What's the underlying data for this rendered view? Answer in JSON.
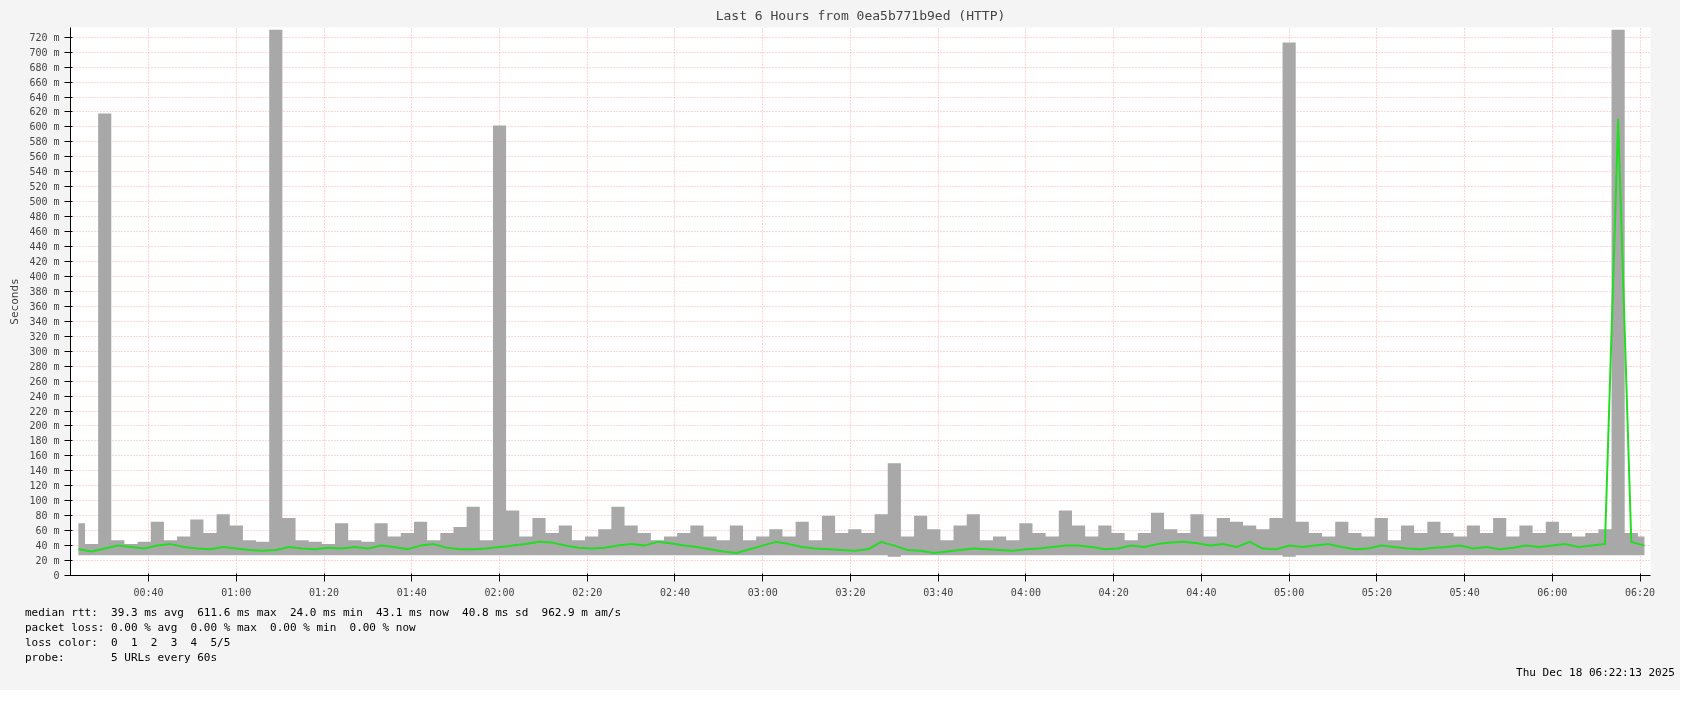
{
  "chart_data": {
    "type": "line",
    "title": "Last 6 Hours from 0ea5b771b9ed (HTTP)",
    "ylabel": "Seconds",
    "x": [
      0.4,
      0.45,
      0.5,
      0.55,
      0.6,
      0.65,
      0.7,
      0.75,
      0.8,
      0.85,
      0.9,
      0.95,
      1.0,
      1.05,
      1.1,
      1.15,
      1.2,
      1.25,
      1.3,
      1.35,
      1.4,
      1.45,
      1.5,
      1.55,
      1.6,
      1.65,
      1.7,
      1.75,
      1.8,
      1.85,
      1.9,
      1.95,
      2.0,
      2.05,
      2.1,
      2.15,
      2.2,
      2.25,
      2.3,
      2.35,
      2.4,
      2.45,
      2.5,
      2.55,
      2.6,
      2.65,
      2.7,
      2.75,
      2.8,
      2.85,
      2.9,
      2.95,
      3.0,
      3.05,
      3.1,
      3.15,
      3.2,
      3.25,
      3.3,
      3.35,
      3.4,
      3.45,
      3.5,
      3.55,
      3.6,
      3.65,
      3.7,
      3.75,
      3.8,
      3.85,
      3.9,
      3.95,
      4.0,
      4.05,
      4.1,
      4.15,
      4.2,
      4.25,
      4.3,
      4.35,
      4.4,
      4.45,
      4.5,
      4.55,
      4.6,
      4.65,
      4.7,
      4.75,
      4.8,
      4.85,
      4.9,
      4.95,
      5.0,
      5.05,
      5.1,
      5.15,
      5.2,
      5.25,
      5.3,
      5.35,
      5.4,
      5.45,
      5.5,
      5.55,
      5.6,
      5.65,
      5.7,
      5.75,
      5.8,
      5.85,
      5.9,
      5.95,
      6.0,
      6.05,
      6.1,
      6.15,
      6.2,
      6.25,
      6.3,
      6.35
    ],
    "series": [
      {
        "color": "#22dd22",
        "values": [
          35,
          32,
          36,
          40,
          38,
          36,
          40,
          42,
          38,
          36,
          35,
          38,
          36,
          34,
          33,
          34,
          38,
          36,
          35,
          37,
          36,
          38,
          36,
          40,
          38,
          35,
          40,
          42,
          37,
          35,
          35,
          36,
          38,
          40,
          42,
          45,
          44,
          40,
          37,
          36,
          37,
          40,
          42,
          40,
          45,
          43,
          40,
          38,
          35,
          32,
          30,
          35,
          40,
          45,
          42,
          38,
          36,
          35,
          34,
          33,
          35,
          45,
          40,
          34,
          33,
          30,
          32,
          34,
          36,
          35,
          34,
          33,
          35,
          36,
          38,
          40,
          40,
          38,
          35,
          36,
          40,
          38,
          42,
          44,
          45,
          43,
          40,
          42,
          38,
          45,
          36,
          35,
          40,
          38,
          40,
          42,
          38,
          35,
          36,
          40,
          38,
          36,
          35,
          37,
          38,
          40,
          36,
          38,
          35,
          37,
          40,
          38,
          40,
          42,
          38,
          40,
          42,
          610,
          45,
          40
        ],
        "lower": [
          27,
          27,
          27,
          27,
          27,
          27,
          27,
          27,
          27,
          27,
          27,
          27,
          27,
          27,
          27,
          27,
          27,
          27,
          27,
          27,
          27,
          27,
          27,
          27,
          27,
          27,
          27,
          27,
          27,
          27,
          27,
          27,
          27,
          27,
          27,
          27,
          27,
          27,
          27,
          27,
          27,
          27,
          27,
          27,
          27,
          27,
          27,
          27,
          27,
          27,
          27,
          27,
          27,
          27,
          27,
          27,
          27,
          27,
          27,
          27,
          27,
          27,
          25,
          27,
          27,
          27,
          27,
          27,
          27,
          27,
          27,
          27,
          27,
          27,
          27,
          27,
          27,
          27,
          27,
          27,
          27,
          27,
          27,
          27,
          27,
          27,
          27,
          27,
          27,
          27,
          27,
          27,
          25,
          27,
          27,
          27,
          27,
          27,
          27,
          27,
          27,
          27,
          27,
          27,
          27,
          27,
          27,
          27,
          27,
          27,
          27,
          27,
          27,
          27,
          27,
          27,
          27,
          27,
          27,
          27
        ],
        "upper": [
          70,
          42,
          618,
          47,
          42,
          45,
          72,
          47,
          52,
          75,
          57,
          82,
          67,
          47,
          45,
          730,
          77,
          47,
          45,
          42,
          70,
          47,
          45,
          70,
          52,
          57,
          72,
          47,
          57,
          65,
          92,
          47,
          602,
          87,
          52,
          77,
          57,
          67,
          47,
          52,
          62,
          92,
          67,
          57,
          47,
          52,
          57,
          67,
          52,
          47,
          67,
          47,
          52,
          62,
          52,
          72,
          47,
          80,
          57,
          62,
          57,
          82,
          150,
          52,
          80,
          62,
          47,
          67,
          82,
          47,
          52,
          47,
          70,
          57,
          52,
          87,
          67,
          52,
          67,
          57,
          47,
          57,
          84,
          62,
          57,
          82,
          52,
          77,
          72,
          67,
          62,
          77,
          713,
          72,
          57,
          52,
          72,
          57,
          52,
          77,
          47,
          67,
          57,
          72,
          57,
          52,
          67,
          57,
          77,
          52,
          67,
          57,
          72,
          57,
          52,
          57,
          62,
          730,
          57,
          52
        ]
      }
    ],
    "xlim": [
      0.37,
      6.373
    ],
    "xticks": [
      {
        "value": 0.6667,
        "label": "00:40"
      },
      {
        "value": 1.0,
        "label": "01:00"
      },
      {
        "value": 1.3333,
        "label": "01:20"
      },
      {
        "value": 1.6667,
        "label": "01:40"
      },
      {
        "value": 2.0,
        "label": "02:00"
      },
      {
        "value": 2.3333,
        "label": "02:20"
      },
      {
        "value": 2.6667,
        "label": "02:40"
      },
      {
        "value": 3.0,
        "label": "03:00"
      },
      {
        "value": 3.3333,
        "label": "03:20"
      },
      {
        "value": 3.6667,
        "label": "03:40"
      },
      {
        "value": 4.0,
        "label": "04:00"
      },
      {
        "value": 4.3333,
        "label": "04:20"
      },
      {
        "value": 4.6667,
        "label": "04:40"
      },
      {
        "value": 5.0,
        "label": "05:00"
      },
      {
        "value": 5.3333,
        "label": "05:20"
      },
      {
        "value": 5.6667,
        "label": "05:40"
      },
      {
        "value": 6.0,
        "label": "06:00"
      },
      {
        "value": 6.3333,
        "label": "06:20"
      }
    ],
    "ylim": [
      0,
      733
    ],
    "yticks": [
      0,
      {
        "value": 20,
        "label": "20 m"
      },
      {
        "value": 40,
        "label": "40 m"
      },
      {
        "value": 60,
        "label": "60 m"
      },
      {
        "value": 80,
        "label": "80 m"
      },
      {
        "value": 100,
        "label": "100 m"
      },
      {
        "value": 120,
        "label": "120 m"
      },
      {
        "value": 140,
        "label": "140 m"
      },
      {
        "value": 160,
        "label": "160 m"
      },
      {
        "value": 180,
        "label": "180 m"
      },
      {
        "value": 200,
        "label": "200 m"
      },
      {
        "value": 220,
        "label": "220 m"
      },
      {
        "value": 240,
        "label": "240 m"
      },
      {
        "value": 260,
        "label": "260 m"
      },
      {
        "value": 280,
        "label": "280 m"
      },
      {
        "value": 300,
        "label": "300 m"
      },
      {
        "value": 320,
        "label": "320 m"
      },
      {
        "value": 340,
        "label": "340 m"
      },
      {
        "value": 360,
        "label": "360 m"
      },
      {
        "value": 380,
        "label": "380 m"
      },
      {
        "value": 400,
        "label": "400 m"
      },
      {
        "value": 420,
        "label": "420 m"
      },
      {
        "value": 440,
        "label": "440 m"
      },
      {
        "value": 460,
        "label": "460 m"
      },
      {
        "value": 480,
        "label": "480 m"
      },
      {
        "value": 500,
        "label": "500 m"
      },
      {
        "value": 520,
        "label": "520 m"
      },
      {
        "value": 540,
        "label": "540 m"
      },
      {
        "value": 560,
        "label": "560 m"
      },
      {
        "value": 580,
        "label": "580 m"
      },
      {
        "value": 600,
        "label": "600 m"
      },
      {
        "value": 620,
        "label": "620 m"
      },
      {
        "value": 640,
        "label": "640 m"
      },
      {
        "value": 660,
        "label": "660 m"
      },
      {
        "value": 680,
        "label": "680 m"
      },
      {
        "value": 700,
        "label": "700 m"
      },
      {
        "value": 720,
        "label": "720 m"
      }
    ],
    "grid": true,
    "annotations": [
      "median rtt:  39.3 ms avg  611.6 ms max  24.0 ms min  43.1 ms now  40.8 ms sd  962.9 m am/s",
      "packet loss: 0.00 % avg  0.00 % max  0.00 % min  0.00 % now",
      "loss color:  0  1  2  3  4  5/5",
      "probe:       5 URLs every 60s",
      "Thu Dec 18 06:22:13 2025"
    ]
  }
}
